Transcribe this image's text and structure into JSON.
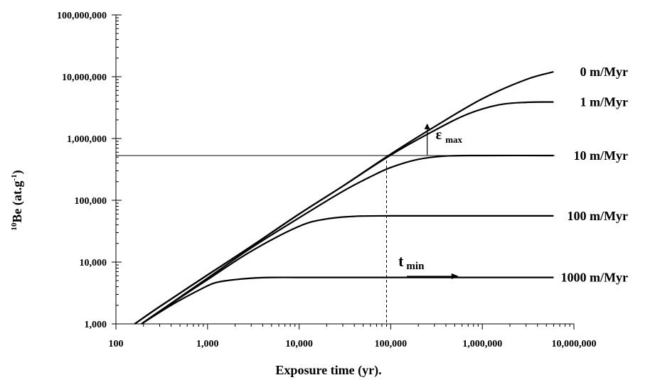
{
  "chart_data": {
    "type": "line",
    "xlabel": "Exposure time (yr).",
    "ylabel": {
      "prefix": "10",
      "main": "Be (at.g",
      "exp": "-1",
      "suffix": ")"
    },
    "x_scale": "log",
    "y_scale": "log",
    "xlim": [
      100,
      10000000
    ],
    "ylim": [
      1000,
      100000000
    ],
    "x_ticks": [
      {
        "value": 100,
        "label": "100"
      },
      {
        "value": 1000,
        "label": "1,000"
      },
      {
        "value": 10000,
        "label": "10,000"
      },
      {
        "value": 100000,
        "label": "100,000"
      },
      {
        "value": 1000000,
        "label": "1,000,000"
      },
      {
        "value": 10000000,
        "label": "10,000,000"
      }
    ],
    "y_ticks": [
      {
        "value": 1000,
        "label": "1,000"
      },
      {
        "value": 10000,
        "label": "10,000"
      },
      {
        "value": 100000,
        "label": "100,000"
      },
      {
        "value": 1000000,
        "label": "1,000,000"
      },
      {
        "value": 10000000,
        "label": "10,000,000"
      },
      {
        "value": 100000000,
        "label": "100,000,000"
      }
    ],
    "series": [
      {
        "name": "0 m/Myr",
        "x": [
          160,
          300,
          1000,
          3000,
          10000,
          30000,
          100000,
          300000,
          1000000,
          3000000,
          6000000
        ],
        "y": [
          1000,
          1900,
          6200,
          18000,
          60000,
          170000,
          560000,
          1550000,
          4400000,
          9000000,
          12000000
        ]
      },
      {
        "name": "1 m/Myr",
        "x": [
          160,
          300,
          1000,
          3000,
          10000,
          30000,
          100000,
          300000,
          700000,
          1500000,
          3000000,
          6000000
        ],
        "y": [
          1000,
          1900,
          6200,
          18000,
          60000,
          170000,
          540000,
          1350000,
          2500000,
          3500000,
          3850000,
          3900000
        ]
      },
      {
        "name": "10 m/Myr",
        "x": [
          190,
          300,
          1000,
          3000,
          10000,
          30000,
          60000,
          100000,
          200000,
          400000,
          1000000,
          6000000
        ],
        "y": [
          1000,
          1600,
          5500,
          17000,
          52000,
          140000,
          240000,
          340000,
          460000,
          520000,
          530000,
          530000
        ]
      },
      {
        "name": "100 m/Myr",
        "x": [
          190,
          300,
          1000,
          3000,
          10000,
          20000,
          40000,
          100000,
          6000000
        ],
        "y": [
          1000,
          1600,
          5200,
          15000,
          38000,
          50000,
          55000,
          56000,
          56000
        ]
      },
      {
        "name": "1000 m/Myr",
        "x": [
          190,
          400,
          800,
          1200,
          2000,
          4000,
          10000,
          100000,
          6000000
        ],
        "y": [
          1000,
          2000,
          3500,
          4600,
          5200,
          5600,
          5650,
          5650,
          5650
        ]
      }
    ],
    "reference_lines": {
      "horizontal_y": 530000,
      "vertical_x": 90000
    },
    "annotations": {
      "eps_symbol": "ε",
      "eps_sub": "max",
      "eps_x": 250000,
      "eps_from_y": 540000,
      "eps_to_y": 1750000,
      "t_symbol": "t",
      "t_sub": "min",
      "t_x_from": 150000,
      "t_x_to": 550000,
      "t_y": 5900
    },
    "legend": "labels at right end of each curve",
    "grid": false
  }
}
